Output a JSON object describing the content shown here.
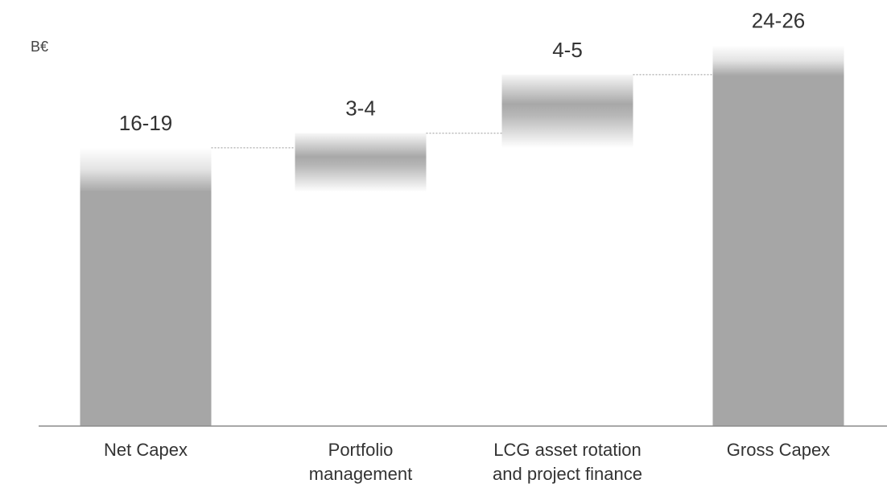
{
  "chart_data": {
    "type": "bar",
    "subtype": "waterfall",
    "unit": "B€",
    "categories": [
      "Net Capex",
      "Portfolio\nmanagement",
      "LCG asset rotation\nand project finance",
      "Gross Capex"
    ],
    "bars": [
      {
        "category": "Net Capex",
        "kind": "total",
        "low": 16,
        "high": 19,
        "value_label": "16-19"
      },
      {
        "category": "Portfolio management",
        "kind": "increment",
        "low": 3,
        "high": 4,
        "value_label": "3-4"
      },
      {
        "category": "LCG asset rotation and project finance",
        "kind": "increment",
        "low": 4,
        "high": 5,
        "value_label": "4-5"
      },
      {
        "category": "Gross Capex",
        "kind": "total",
        "low": 24,
        "high": 26,
        "value_label": "24-26"
      }
    ],
    "ylim": [
      0,
      28
    ],
    "legend": "none",
    "grid": false,
    "colors": {
      "bar": "#a6a6a6",
      "bar_fade": "#ffffff",
      "connector": "#999999",
      "axis": "#8c8c8c",
      "text": "#333333"
    }
  }
}
